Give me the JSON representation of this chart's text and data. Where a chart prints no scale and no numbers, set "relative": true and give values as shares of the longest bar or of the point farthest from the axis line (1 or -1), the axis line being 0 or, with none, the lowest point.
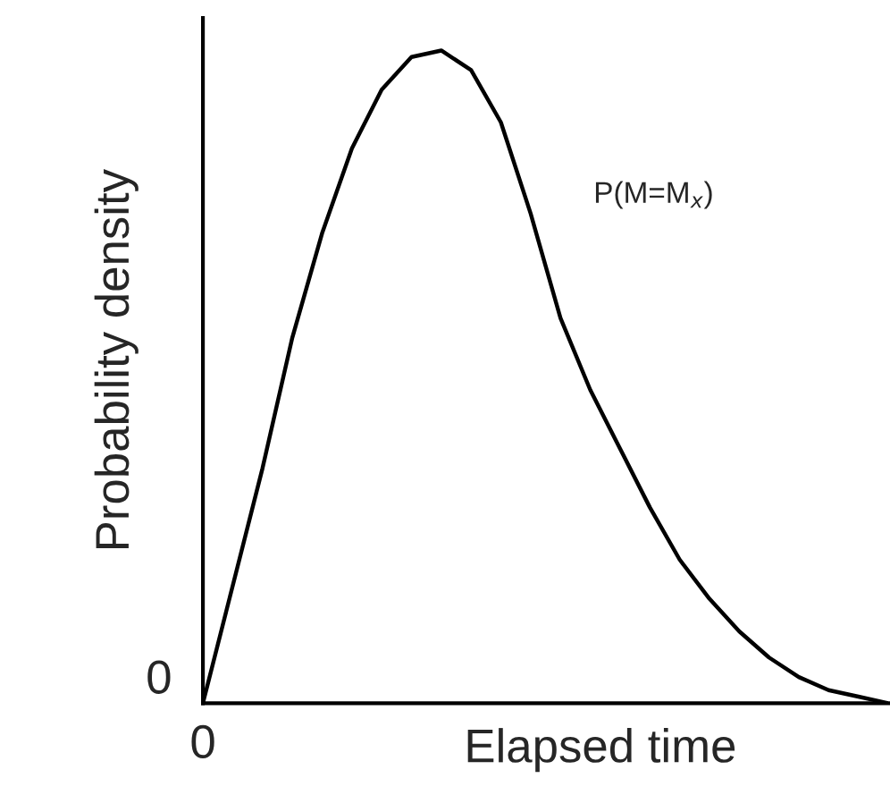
{
  "chart_data": {
    "type": "line",
    "relative": true,
    "xlabel": "Elapsed time",
    "ylabel": "Probability density",
    "categories": [
      null,
      null,
      null,
      null,
      null,
      null,
      null,
      null,
      null,
      null,
      null,
      null,
      null,
      null,
      null,
      null,
      null,
      null,
      null,
      null,
      null,
      null,
      null,
      null
    ],
    "series": [
      {
        "color": "#000000",
        "values": [
          0,
          0.18,
          0.36,
          0.56,
          0.72,
          0.85,
          0.94,
          0.99,
          1,
          0.97,
          0.89,
          0.75,
          0.59,
          0.48,
          0.39,
          0.3,
          0.22,
          0.16,
          0.11,
          0.07,
          0.04,
          0.02,
          0.01,
          0
        ]
      }
    ],
    "annotations": [
      "P(M=M$_{x}$)",
      "0",
      "0"
    ],
    "marker": "none",
    "line_style": "solid",
    "legend": false
  }
}
